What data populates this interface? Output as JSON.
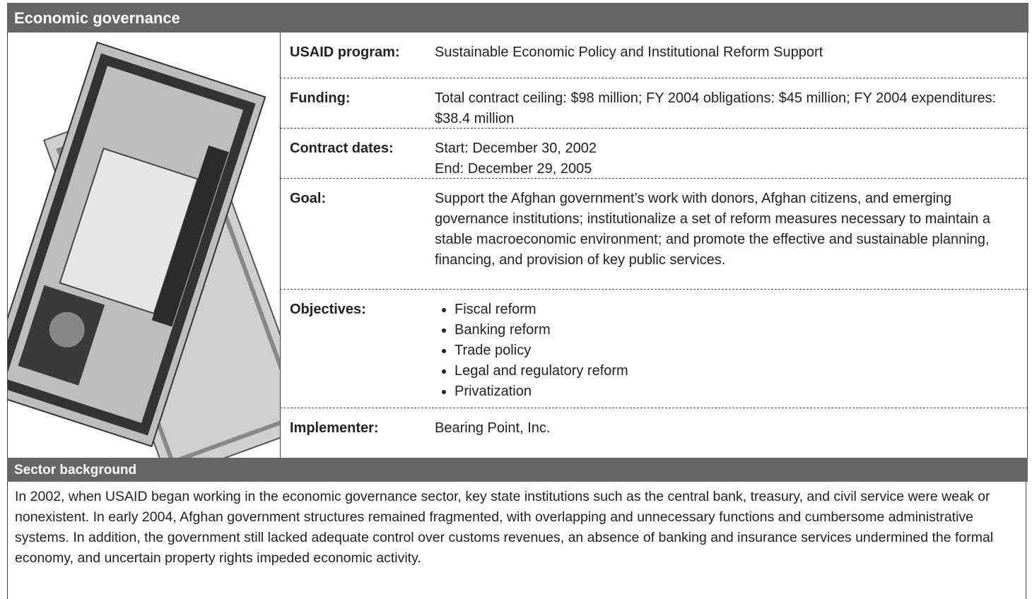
{
  "header": {
    "title": "Economic governance"
  },
  "table": {
    "rows": [
      {
        "label": "USAID program:",
        "lines": [
          "Sustainable Economic Policy and Institutional Reform Support"
        ]
      },
      {
        "label": "Funding:",
        "lines": [
          "Total contract ceiling: $98 million; FY 2004 obligations: $45 million; FY 2004 expenditures: $38.4 million"
        ]
      },
      {
        "label": "Contract dates:",
        "lines": [
          "Start: December 30, 2002",
          "End: December 29, 2005"
        ]
      },
      {
        "label": "Goal:",
        "lines": [
          "Support the Afghan government’s work with donors, Afghan citizens, and emerging governance institutions; institutionalize a set of reform measures necessary to maintain a stable macroeconomic environment; and promote the effective and sustainable planning, financing, and provision of key public services."
        ]
      },
      {
        "label": "Objectives:",
        "items": [
          "Fiscal reform",
          "Banking reform",
          "Trade policy",
          "Legal and regulatory reform",
          "Privatization"
        ]
      },
      {
        "label": "Implementer:",
        "lines": [
          "Bearing Point, Inc."
        ]
      }
    ]
  },
  "sector": {
    "title": "Sector background",
    "text": "In 2002, when USAID began working in the economic governance sector, key state institutions such as the central bank, treasury, and civil service were weak or nonexistent. In early 2004, Afghan government structures remained fragmented, with overlapping and unnecessary functions and cumbersome administrative systems. In addition, the government still lacked adequate control over customs revenues, an absence of banking and insurance services undermined the formal economy, and uncertain property rights impeded economic activity."
  }
}
